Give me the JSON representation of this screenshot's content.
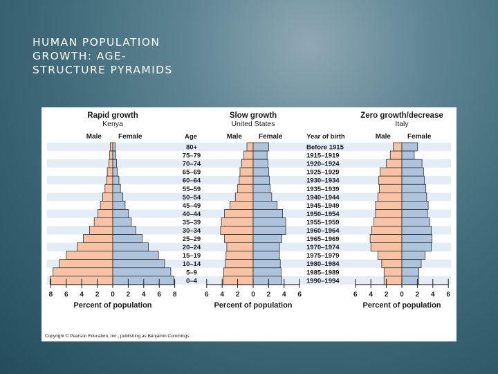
{
  "slide": {
    "title_lines": [
      "HUMAN POPULATION",
      "GROWTH: AGE-",
      "STRUCTURE PYRAMIDS"
    ]
  },
  "figure": {
    "age_header": "Age",
    "year_header": "Year of birth",
    "ages": [
      "80+",
      "75–79",
      "70–74",
      "65–69",
      "60–64",
      "55–59",
      "50–54",
      "45–49",
      "40–44",
      "35–39",
      "30–34",
      "25–29",
      "20–24",
      "15–19",
      "10–14",
      "5–9",
      "0–4"
    ],
    "years": [
      "Before 1915",
      "1915–1919",
      "1920–1924",
      "1925–1929",
      "1930–1934",
      "1935–1939",
      "1940–1944",
      "1945–1949",
      "1950–1954",
      "1955–1959",
      "1960–1964",
      "1965–1969",
      "1970–1974",
      "1975–1979",
      "1980–1984",
      "1985–1989",
      "1990–1994"
    ],
    "copyright": "Copyright © Pearson Education, Inc., publishing as Benjamin Cummings",
    "colors": {
      "male": "#f7c3a4",
      "female": "#aec3dc",
      "stripe": "#e4ecf5",
      "stroke": "#1a1a1a"
    }
  },
  "chart_data": [
    {
      "type": "bar",
      "title": "Rapid growth",
      "subtitle": "Kenya",
      "male_label": "Male",
      "female_label": "Female",
      "xlabel": "Percent of population",
      "xticks": [
        "8",
        "6",
        "4",
        "2",
        "0",
        "2",
        "4",
        "6",
        "8"
      ],
      "xlim": [
        -8,
        8
      ],
      "categories": [
        "80+",
        "75–79",
        "70–74",
        "65–69",
        "60–64",
        "55–59",
        "50–54",
        "45–49",
        "40–44",
        "35–39",
        "30–34",
        "25–29",
        "20–24",
        "15–19",
        "10–14",
        "5–9",
        "0–4"
      ],
      "series": [
        {
          "name": "Male",
          "values": [
            0.3,
            0.4,
            0.5,
            0.7,
            0.8,
            1.0,
            1.3,
            1.6,
            1.9,
            2.4,
            3.0,
            3.8,
            4.6,
            6.0,
            6.9,
            7.7,
            8.1
          ]
        },
        {
          "name": "Female",
          "values": [
            0.3,
            0.4,
            0.5,
            0.6,
            0.8,
            1.0,
            1.3,
            1.6,
            2.0,
            2.4,
            3.0,
            3.8,
            4.6,
            5.9,
            6.7,
            7.5,
            7.9
          ]
        }
      ]
    },
    {
      "type": "bar",
      "title": "Slow growth",
      "subtitle": "United States",
      "male_label": "Male",
      "female_label": "Female",
      "xlabel": "Percent of population",
      "xticks": [
        "6",
        "4",
        "2",
        "0",
        "2",
        "4",
        "6"
      ],
      "xlim": [
        -6,
        6
      ],
      "categories": [
        "80+",
        "75–79",
        "70–74",
        "65–69",
        "60–64",
        "55–59",
        "50–54",
        "45–49",
        "40–44",
        "35–39",
        "30–34",
        "25–29",
        "20–24",
        "15–19",
        "10–14",
        "5–9",
        "0–4"
      ],
      "series": [
        {
          "name": "Male",
          "values": [
            0.8,
            1.2,
            1.5,
            1.7,
            1.8,
            2.0,
            2.3,
            3.0,
            3.7,
            4.1,
            4.2,
            3.7,
            3.4,
            3.5,
            3.6,
            3.8,
            3.9
          ]
        },
        {
          "name": "Female",
          "values": [
            2.0,
            1.8,
            1.9,
            2.0,
            2.1,
            2.2,
            2.4,
            3.1,
            3.8,
            4.2,
            4.2,
            3.7,
            3.4,
            3.4,
            3.5,
            3.6,
            3.7
          ]
        }
      ]
    },
    {
      "type": "bar",
      "title": "Zero growth/decrease",
      "subtitle": "Italy",
      "male_label": "Male",
      "female_label": "Female",
      "xlabel": "Percent of population",
      "xticks": [
        "6",
        "4",
        "2",
        "0",
        "2",
        "4",
        "6"
      ],
      "xlim": [
        -6,
        6
      ],
      "categories": [
        "80+",
        "75–79",
        "70–74",
        "65–69",
        "60–64",
        "55–59",
        "50–54",
        "45–49",
        "40–44",
        "35–39",
        "30–34",
        "25–29",
        "20–24",
        "15–19",
        "10–14",
        "5–9",
        "0–4"
      ],
      "series": [
        {
          "name": "Male",
          "values": [
            1.1,
            1.5,
            2.0,
            2.8,
            3.0,
            2.9,
            3.1,
            3.4,
            3.4,
            3.6,
            3.9,
            4.1,
            4.0,
            3.1,
            2.6,
            2.3,
            2.3
          ]
        },
        {
          "name": "Female",
          "values": [
            2.0,
            1.6,
            2.6,
            2.8,
            2.9,
            3.1,
            3.2,
            3.4,
            3.3,
            3.6,
            3.8,
            3.9,
            3.8,
            3.0,
            2.5,
            2.2,
            2.2
          ]
        }
      ]
    }
  ]
}
